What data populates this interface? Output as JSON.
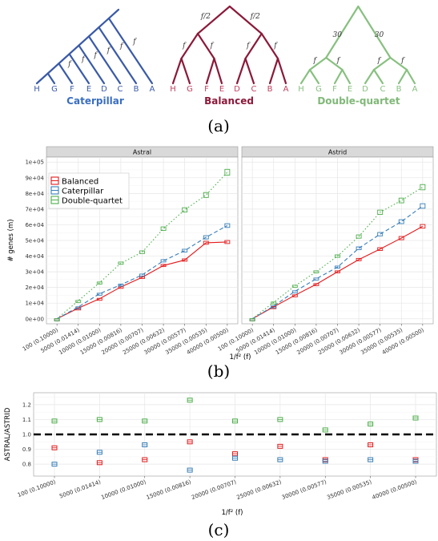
{
  "figure": {
    "label_a": "(a)",
    "label_b": "(b)",
    "label_c": "(c)"
  },
  "trees": {
    "leaves": [
      "H",
      "G",
      "F",
      "E",
      "D",
      "C",
      "B",
      "A"
    ],
    "caterpillar": {
      "title": "Caterpillar",
      "color": "#3a5aa8",
      "branch_label": "f"
    },
    "balanced": {
      "title": "Balanced",
      "color": "#8b1a3a",
      "branch_label": "f",
      "root_branch_label": "f/2"
    },
    "double_quartet": {
      "title": "Double-quartet",
      "color": "#88c080",
      "branch_label": "f",
      "root_branch_label": "30"
    }
  },
  "chart_data": [
    {
      "type": "line",
      "facets": [
        "Astral",
        "Astrid"
      ],
      "x_categories": [
        "100 (0.10000)",
        "5000 (0.01414)",
        "10000 (0.01000)",
        "15000 (0.00816)",
        "20000 (0.00707)",
        "25000 (0.00632)",
        "30000 (0.00577)",
        "35000 (0.00535)",
        "40000 (0.00500)"
      ],
      "xlabel": "1/f² (f)",
      "ylabel": "# genes (m)",
      "ylim": [
        0,
        100000
      ],
      "y_ticks": [
        0,
        10000,
        20000,
        30000,
        40000,
        50000,
        60000,
        70000,
        80000,
        90000,
        100000
      ],
      "y_tick_labels": [
        "0e+00",
        "1e+04",
        "2e+04",
        "3e+04",
        "4e+04",
        "5e+04",
        "6e+04",
        "7e+04",
        "8e+04",
        "9e+04",
        "1e+05"
      ],
      "grid": true,
      "legend_position": "top-left",
      "series": [
        {
          "name": "Balanced",
          "color": "#e41a1c",
          "dash": "solid",
          "Astral": [
            0,
            6800,
            12800,
            20300,
            26500,
            34000,
            37500,
            48500,
            49000
          ],
          "Astrid": [
            0,
            7600,
            15000,
            22000,
            30000,
            37800,
            44500,
            51500,
            59000
          ]
        },
        {
          "name": "Caterpillar",
          "color": "#377eb8",
          "dash": "dashed",
          "Astral": [
            0,
            7500,
            16000,
            21700,
            28000,
            37000,
            43500,
            52000,
            59500
          ],
          "Astrid": [
            0,
            8100,
            17500,
            25500,
            33000,
            45000,
            54000,
            62000,
            72000
          ]
        },
        {
          "name": "Double-quartet",
          "color": "#4daf4a",
          "dash": "dotted",
          "Astral": [
            0,
            11500,
            23000,
            35500,
            42500,
            57500,
            69500,
            79000,
            93500
          ],
          "Astrid": [
            0,
            10500,
            21000,
            30000,
            40000,
            52500,
            68000,
            75500,
            84000
          ]
        }
      ]
    },
    {
      "type": "scatter",
      "x_categories": [
        "100 (0.10000)",
        "5000 (0.01414)",
        "10000 (0.01000)",
        "15000 (0.00816)",
        "20000 (0.00707)",
        "25000 (0.00632)",
        "30000 (0.00577)",
        "35000 (0.00535)",
        "40000 (0.00500)"
      ],
      "xlabel": "1/f² (f)",
      "ylabel": "ASTRAL/ASTRID",
      "ylim": [
        0.72,
        1.28
      ],
      "y_ticks": [
        0.8,
        0.9,
        1.0,
        1.1,
        1.2
      ],
      "y_tick_labels": [
        "0.8",
        "0.9",
        "1.0",
        "1.1",
        "1.2"
      ],
      "reference_line": 1.0,
      "series": [
        {
          "name": "Balanced",
          "color": "#e41a1c",
          "values": [
            0.91,
            0.81,
            0.83,
            0.95,
            0.87,
            0.92,
            0.83,
            0.93,
            0.83
          ]
        },
        {
          "name": "Caterpillar",
          "color": "#377eb8",
          "values": [
            0.8,
            0.88,
            0.93,
            0.76,
            0.84,
            0.83,
            0.82,
            0.83,
            0.82
          ]
        },
        {
          "name": "Double-quartet",
          "color": "#4daf4a",
          "values": [
            1.09,
            1.1,
            1.09,
            1.23,
            1.09,
            1.1,
            1.03,
            1.07,
            1.11
          ]
        }
      ]
    }
  ]
}
